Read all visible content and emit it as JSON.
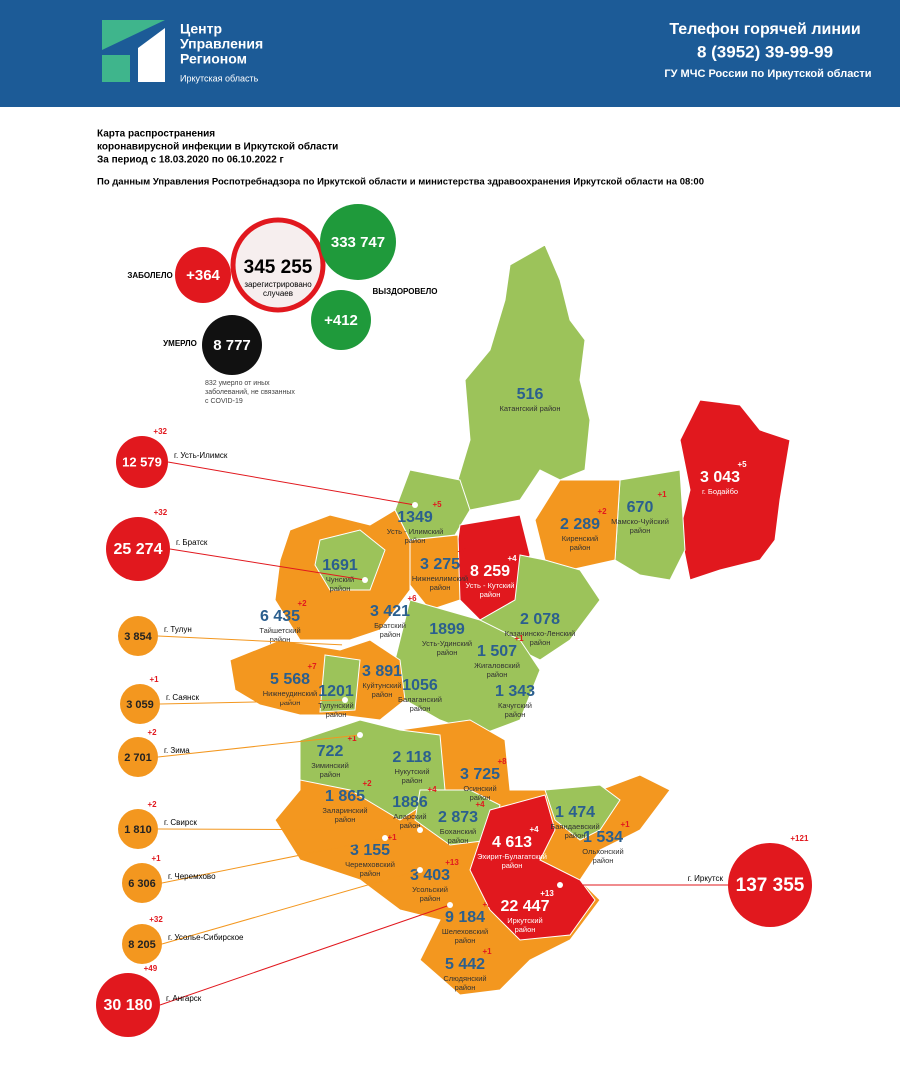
{
  "header": {
    "logo_lines": [
      "Центр",
      "Управления",
      "Регионом"
    ],
    "logo_sub": "Иркутская область",
    "hotline_title": "Телефон горячей линии",
    "phone": "8 (3952) 39-99-99",
    "org": "ГУ МЧС России по Иркутской области"
  },
  "title": {
    "lines": [
      "Карта распространения",
      "коронавирусной инфекции в Иркутской области",
      "За период с 18.03.2020 по 06.10.2022 г"
    ],
    "source": "По данным Управления Роспотребнадзора по Иркутской области и министерства здравоохранения Иркутской области на 08:00"
  },
  "summary": {
    "sick_label": "ЗАБОЛЕЛО",
    "new_cases": "+364",
    "total": "345 255",
    "total_caption": [
      "зарегистрировано",
      "случаев"
    ],
    "recovered": "333 747",
    "recovered_label": "ВЫЗДОРОВЕЛО",
    "new_recovered": "+412",
    "died_label": "УМЕРЛО",
    "died": "8 777",
    "note": [
      "832 умерло от иных",
      "заболеваний, не связанных",
      "с COVID-19"
    ]
  },
  "cities": [
    {
      "name": "г. Усть-Илимск",
      "value": "12 579",
      "delta": "+32"
    },
    {
      "name": "г. Братск",
      "value": "25 274",
      "delta": "+32"
    },
    {
      "name": "г. Тулун",
      "value": "3 854"
    },
    {
      "name": "г. Саянск",
      "value": "3 059",
      "delta": "+1"
    },
    {
      "name": "г. Зима",
      "value": "2 701",
      "delta": "+2"
    },
    {
      "name": "г. Свирск",
      "value": "1 810",
      "delta": "+2"
    },
    {
      "name": "г. Черемхово",
      "value": "6 306",
      "delta": "+1"
    },
    {
      "name": "г. Усолье-Сибирское",
      "value": "8 205",
      "delta": "+32"
    },
    {
      "name": "г. Ангарск",
      "value": "30 180",
      "delta": "+49"
    },
    {
      "name": "г. Иркутск",
      "value": "137 355",
      "delta": "+121"
    }
  ],
  "districts": [
    {
      "value": "516",
      "name": [
        "Катангский район"
      ]
    },
    {
      "value": "3 043",
      "name": [
        "г. Бодайбо"
      ],
      "delta": "+5"
    },
    {
      "value": "670",
      "name": [
        "Мамско-Чуйский",
        "район"
      ],
      "delta": "+1"
    },
    {
      "value": "2 289",
      "name": [
        "Киренский",
        "район"
      ],
      "delta": "+2"
    },
    {
      "value": "1349",
      "name": [
        "Усть - Илимский",
        "район"
      ],
      "delta": "+5"
    },
    {
      "value": "8 259",
      "name": [
        "Усть - Кутский",
        "район"
      ],
      "delta": "+4"
    },
    {
      "value": "3 275",
      "name": [
        "Нижнеилимский",
        "район"
      ],
      "delta": "+2"
    },
    {
      "value": "1691",
      "name": [
        "Чунский",
        "район"
      ]
    },
    {
      "value": "3 421",
      "name": [
        "Братский",
        "район"
      ],
      "delta": "+6"
    },
    {
      "value": "6 435",
      "name": [
        "Тайшетский",
        "район"
      ],
      "delta": "+2"
    },
    {
      "value": "2 078",
      "name": [
        "Казачинско-Ленский",
        "район"
      ]
    },
    {
      "value": "1899",
      "name": [
        "Усть-Удинский",
        "район"
      ]
    },
    {
      "value": "1 507",
      "name": [
        "Жигаловский",
        "район"
      ],
      "delta": "+1"
    },
    {
      "value": "3 891",
      "name": [
        "Куйтунский",
        "район"
      ]
    },
    {
      "value": "5 568",
      "name": [
        "Нижнеудинский",
        "район"
      ],
      "delta": "+7"
    },
    {
      "value": "1201",
      "name": [
        "Тулунский",
        "район"
      ]
    },
    {
      "value": "1056",
      "name": [
        "Балаганский",
        "район"
      ]
    },
    {
      "value": "1 343",
      "name": [
        "Качугский",
        "район"
      ]
    },
    {
      "value": "722",
      "name": [
        "Зиминский",
        "район"
      ],
      "delta": "+1"
    },
    {
      "value": "2 118",
      "name": [
        "Нукутский",
        "район"
      ]
    },
    {
      "value": "3 725",
      "name": [
        "Осинский",
        "район"
      ],
      "delta": "+8"
    },
    {
      "value": "1 865",
      "name": [
        "Заларинский",
        "район"
      ],
      "delta": "+2"
    },
    {
      "value": "1886",
      "name": [
        "Аларский",
        "район"
      ],
      "delta": "+4"
    },
    {
      "value": "2 873",
      "name": [
        "Боханский",
        "район"
      ],
      "delta": "+4"
    },
    {
      "value": "1 474",
      "name": [
        "Баяндаевский",
        "район"
      ]
    },
    {
      "value": "4 613",
      "name": [
        "Эхирит-Булагатский",
        "район"
      ],
      "delta": "+4"
    },
    {
      "value": "1 534",
      "name": [
        "Ольхонский",
        "район"
      ],
      "delta": "+1"
    },
    {
      "value": "3 155",
      "name": [
        "Черемховский",
        "район"
      ],
      "delta": "+1"
    },
    {
      "value": "3 403",
      "name": [
        "Усольский",
        "район"
      ],
      "delta": "+13"
    },
    {
      "value": "22 447",
      "name": [
        "Иркутский",
        "район"
      ],
      "delta": "+13"
    },
    {
      "value": "9 184",
      "name": [
        "Шелеховский",
        "район"
      ],
      "delta": "+5"
    },
    {
      "value": "5 442",
      "name": [
        "Слюдянский",
        "район"
      ],
      "delta": "+1"
    }
  ]
}
